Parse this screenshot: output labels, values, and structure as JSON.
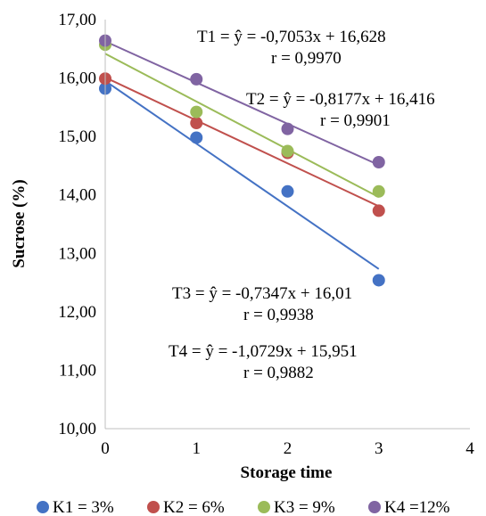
{
  "chart_data": {
    "type": "scatter",
    "xlabel": "Storage time",
    "ylabel": "Sucrose (%)",
    "xlim": [
      0,
      4
    ],
    "ylim": [
      10,
      17
    ],
    "x_ticks": [
      "0",
      "1",
      "2",
      "3",
      "4"
    ],
    "y_ticks": [
      "10,00",
      "11,00",
      "12,00",
      "13,00",
      "14,00",
      "15,00",
      "16,00",
      "17,00"
    ],
    "grid": false,
    "legend_position": "bottom",
    "x": [
      0,
      1,
      2,
      3
    ],
    "series": [
      {
        "name": "K1 = 3%",
        "color": "#4472C4",
        "values": [
          15.82,
          14.98,
          14.06,
          12.54
        ],
        "trend": {
          "slope": -1.0729,
          "intercept": 15.951
        }
      },
      {
        "name": "K2 = 6%",
        "color": "#C0504D",
        "values": [
          15.99,
          15.23,
          14.72,
          13.73
        ],
        "trend": {
          "slope": -0.7347,
          "intercept": 16.01
        }
      },
      {
        "name": "K3 = 9%",
        "color": "#9BBB59",
        "values": [
          16.57,
          15.42,
          14.75,
          14.06
        ],
        "trend": {
          "slope": -0.8177,
          "intercept": 16.416
        }
      },
      {
        "name": "K4 =12%",
        "color": "#8064A2",
        "values": [
          16.64,
          15.98,
          15.13,
          14.56
        ],
        "trend": {
          "slope": -0.7053,
          "intercept": 16.628
        }
      }
    ],
    "annotations": [
      {
        "eq": "T1 = ŷ = -0,7053x + 16,628",
        "r": "r = 0,9970"
      },
      {
        "eq": "T2 = ŷ = -0,8177x + 16,416",
        "r": "r = 0,9901"
      },
      {
        "eq": "T3 = ŷ = -0,7347x + 16,01",
        "r": "r = 0,9938"
      },
      {
        "eq": "T4 = ŷ = -1,0729x + 15,951",
        "r": "r = 0,9882"
      }
    ]
  }
}
